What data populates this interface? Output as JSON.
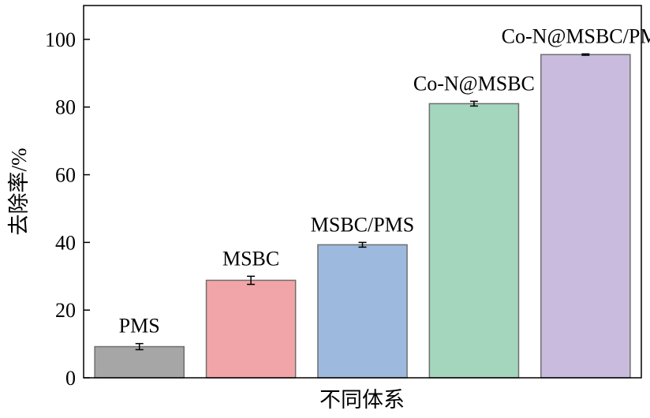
{
  "chart_data": {
    "type": "bar",
    "categories": [
      "PMS",
      "MSBC",
      "MSBC/PMS",
      "Co-N@MSBC",
      "Co-N@MSBC/PMS"
    ],
    "values": [
      9.2,
      28.8,
      39.3,
      81.0,
      95.5
    ],
    "errors": [
      0.9,
      1.2,
      0.7,
      0.7,
      0.2
    ],
    "colors": [
      "#a6a6a6",
      "#f2a5a8",
      "#9db9de",
      "#a4d6bd",
      "#c9bbdd"
    ],
    "xlabel": "不同体系",
    "ylabel": "去除率/%",
    "ylim": [
      0,
      110
    ],
    "yticks": [
      0,
      20,
      40,
      60,
      80,
      100
    ],
    "grid": false,
    "legend": "none"
  }
}
